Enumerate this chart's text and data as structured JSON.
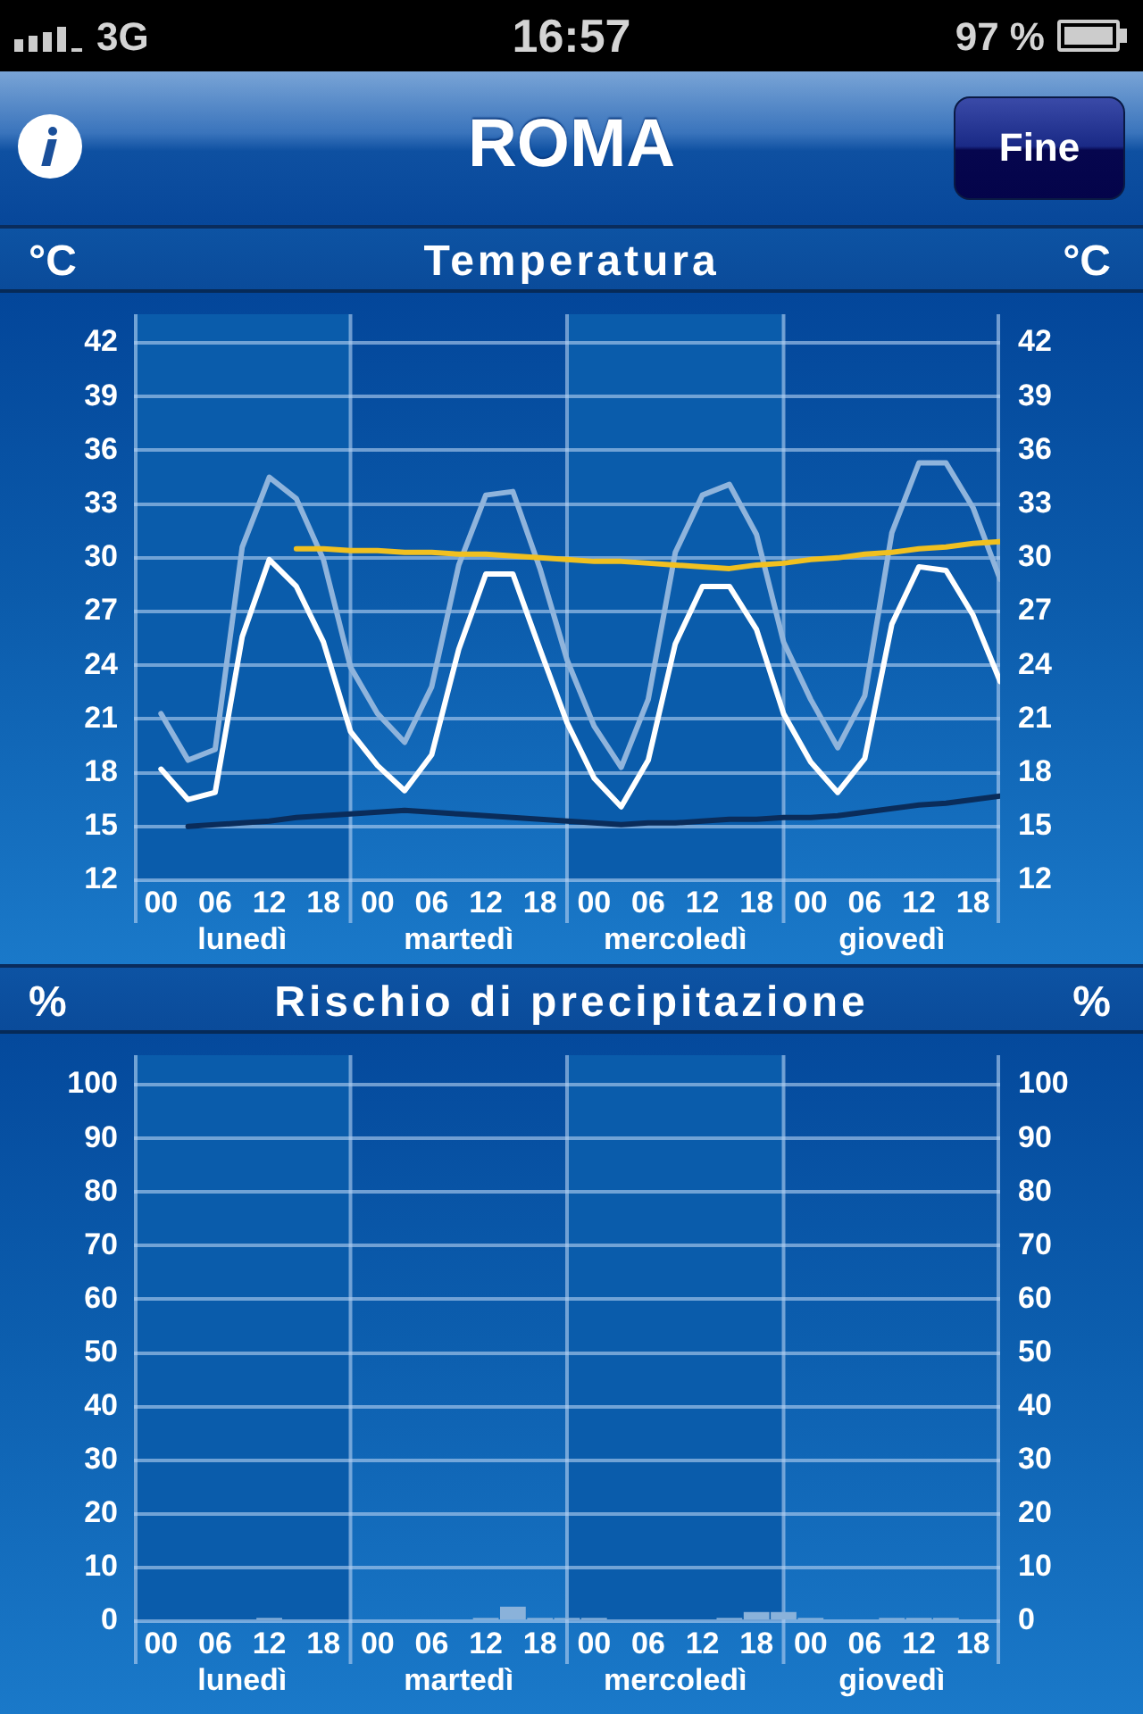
{
  "chart_data": [
    {
      "type": "line",
      "title": "ROMA",
      "subtitle": "Temperatura",
      "ylabel": "°C",
      "y2label": "°C",
      "annotations": [
        "16:57",
        "3G",
        "97 %",
        "Fine"
      ],
      "categories": [
        "00",
        null,
        "06",
        "lunedì",
        "12",
        null,
        "18",
        null,
        "00",
        null,
        "06",
        "martedì",
        "12",
        null,
        "18",
        null,
        "00",
        null,
        "06",
        "mercoledì",
        "12",
        null,
        "18",
        null,
        "00",
        null,
        "06",
        "giovedì",
        "12",
        null,
        "18",
        null
      ],
      "ylim": [
        12,
        43.6
      ],
      "yticks": [
        12,
        15,
        18,
        21,
        24,
        27,
        30,
        33,
        36,
        39,
        42
      ],
      "y2lim": [
        12,
        43.6
      ],
      "y2ticks": [
        12,
        15,
        18,
        21,
        24,
        27,
        30,
        33,
        36,
        39,
        42
      ],
      "grid": true,
      "series": [
        {
          "color": "#8fb4dc",
          "values": [
            21.3,
            18.7,
            19.3,
            30.6,
            34.5,
            33.3,
            29.9,
            23.9,
            21.3,
            19.7,
            22.8,
            29.6,
            33.5,
            33.7,
            29.4,
            24.3,
            20.6,
            18.3,
            22.1,
            30.3,
            33.5,
            34.1,
            31.3,
            25.3,
            22.1,
            19.4,
            22.3,
            31.4,
            35.3,
            35.3,
            32.8,
            28.8
          ]
        },
        {
          "color": "#0a2c5a",
          "values": [
            null,
            15.0,
            15.1,
            15.2,
            15.3,
            15.5,
            15.6,
            15.7,
            15.8,
            15.9,
            15.8,
            15.7,
            15.6,
            15.5,
            15.4,
            15.3,
            15.2,
            15.1,
            15.2,
            15.2,
            15.3,
            15.4,
            15.4,
            15.5,
            15.5,
            15.6,
            15.8,
            16.0,
            16.2,
            16.3,
            16.5,
            16.7
          ]
        },
        {
          "color": "#f0c020",
          "values": [
            null,
            null,
            null,
            null,
            null,
            30.5,
            30.5,
            30.4,
            30.4,
            30.3,
            30.3,
            30.2,
            30.2,
            30.1,
            30.0,
            29.9,
            29.8,
            29.8,
            29.7,
            29.6,
            29.5,
            29.4,
            29.6,
            29.7,
            29.9,
            30.0,
            30.2,
            30.3,
            30.5,
            30.6,
            30.8,
            30.9
          ]
        },
        {
          "color": "#ffffff",
          "values": [
            18.2,
            16.5,
            16.9,
            25.6,
            29.9,
            28.4,
            25.3,
            20.3,
            18.4,
            17.0,
            19.0,
            24.9,
            29.1,
            29.1,
            24.9,
            20.8,
            17.7,
            16.1,
            18.7,
            25.2,
            28.4,
            28.4,
            26.0,
            21.3,
            18.6,
            16.9,
            18.8,
            26.3,
            29.5,
            29.3,
            26.8,
            23.1
          ]
        }
      ]
    },
    {
      "type": "bar",
      "title": "Rischio di precipitazione",
      "ylabel": "%",
      "y2label": "%",
      "categories": [
        "00",
        null,
        "06",
        "lunedì",
        "12",
        null,
        "18",
        null,
        "00",
        null,
        "06",
        "martedì",
        "12",
        null,
        "18",
        null,
        "00",
        null,
        "06",
        "mercoledì",
        "12",
        null,
        "18",
        null,
        "00",
        null,
        "06",
        "giovedì",
        "12",
        null,
        "18",
        null
      ],
      "ylim": [
        0,
        105.5
      ],
      "yticks": [
        0,
        10,
        20,
        30,
        40,
        50,
        60,
        70,
        80,
        90,
        100
      ],
      "y2lim": [
        0,
        105.5
      ],
      "y2ticks": [
        0,
        10,
        20,
        30,
        40,
        50,
        60,
        70,
        80,
        90,
        100
      ],
      "grid": true,
      "values": [
        null,
        null,
        null,
        null,
        0.6,
        null,
        null,
        null,
        null,
        null,
        null,
        null,
        0.6,
        2.7,
        0.6,
        0.6,
        0.6,
        null,
        null,
        null,
        null,
        0.6,
        1.7,
        1.7,
        0.6,
        null,
        null,
        0.6,
        0.6,
        0.6,
        null,
        null
      ],
      "color": "#8ab2da"
    }
  ]
}
